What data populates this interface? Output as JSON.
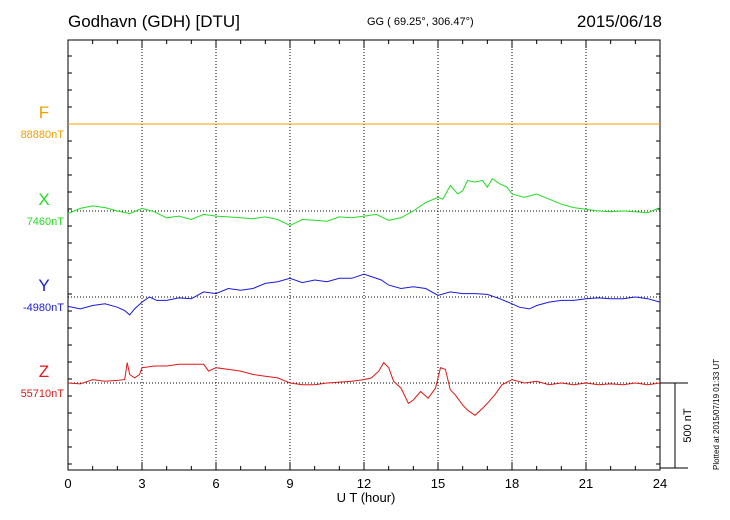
{
  "header": {
    "station": "Godhavn (GDH)  [DTU]",
    "coords": "GG ( 69.25°, 306.47°)",
    "date": "2015/06/18"
  },
  "footer": {
    "plotted": "Plotted at 2015/07/19 01:33 UT"
  },
  "colors": {
    "F": "#f0a000",
    "X": "#22dd22",
    "Y": "#1a1adc",
    "Z": "#e01818"
  },
  "chart_data": {
    "type": "line",
    "title": "Godhavn (GDH)  [DTU]",
    "xlabel": "U T (hour)",
    "xlim": [
      0,
      24
    ],
    "xticks": [
      "0",
      "3",
      "6",
      "9",
      "12",
      "15",
      "18",
      "21",
      "24"
    ],
    "grid": true,
    "scale_bar": "500 nT",
    "series": [
      {
        "name": "F",
        "baseline_label": "88880nT",
        "baseline": 88880,
        "x": [
          0,
          24
        ],
        "y": [
          88880,
          88880
        ]
      },
      {
        "name": "X",
        "baseline_label": "7460nT",
        "baseline": 7460,
        "x": [
          0,
          0.5,
          1,
          1.5,
          2,
          2.5,
          3,
          3.5,
          4,
          4.5,
          5,
          5.5,
          6,
          6.5,
          7,
          7.5,
          8,
          8.5,
          9,
          9.5,
          10,
          10.5,
          11,
          11.5,
          12,
          12.5,
          13,
          13.5,
          14,
          14.5,
          15,
          15.2,
          15.5,
          15.8,
          16,
          16.2,
          16.5,
          16.8,
          17,
          17.2,
          17.5,
          17.8,
          18,
          18.5,
          19,
          19.5,
          20,
          20.5,
          21,
          21.5,
          22,
          22.5,
          23,
          23.5,
          24
        ],
        "y": [
          7445,
          7475,
          7490,
          7480,
          7460,
          7445,
          7475,
          7455,
          7420,
          7430,
          7410,
          7440,
          7430,
          7425,
          7420,
          7415,
          7425,
          7410,
          7375,
          7410,
          7405,
          7400,
          7425,
          7420,
          7430,
          7440,
          7405,
          7420,
          7460,
          7510,
          7540,
          7530,
          7610,
          7560,
          7580,
          7640,
          7630,
          7640,
          7600,
          7650,
          7620,
          7600,
          7560,
          7540,
          7560,
          7530,
          7500,
          7480,
          7470,
          7460,
          7455,
          7460,
          7455,
          7450,
          7480
        ]
      },
      {
        "name": "Y",
        "baseline_label": "-4980nT",
        "baseline": -4980,
        "x": [
          0,
          0.5,
          1,
          1.5,
          2,
          2.3,
          2.5,
          2.7,
          3,
          3.3,
          3.6,
          4,
          4.5,
          5,
          5.5,
          6,
          6.5,
          7,
          7.5,
          8,
          8.5,
          9,
          9.5,
          10,
          10.5,
          11,
          11.5,
          12,
          12.3,
          12.7,
          13,
          13.5,
          14,
          14.5,
          15,
          15.5,
          16,
          16.5,
          17,
          17.5,
          18,
          18.3,
          18.7,
          19,
          19.5,
          20,
          20.5,
          21,
          21.5,
          22,
          22.5,
          23,
          23.5,
          24
        ],
        "y": [
          -5035,
          -5050,
          -5030,
          -5020,
          -5040,
          -5060,
          -5085,
          -5050,
          -5010,
          -4980,
          -5000,
          -5000,
          -4985,
          -4990,
          -4950,
          -4960,
          -4930,
          -4940,
          -4930,
          -4900,
          -4890,
          -4870,
          -4895,
          -4880,
          -4890,
          -4870,
          -4870,
          -4845,
          -4860,
          -4880,
          -4910,
          -4930,
          -4920,
          -4930,
          -4970,
          -4950,
          -4960,
          -4960,
          -4965,
          -4990,
          -5020,
          -5040,
          -5050,
          -5030,
          -5010,
          -5000,
          -5000,
          -4990,
          -4985,
          -4990,
          -4990,
          -4980,
          -4990,
          -5010
        ]
      },
      {
        "name": "Z",
        "baseline_label": "55710nT",
        "baseline": 55710,
        "x": [
          0,
          0.5,
          1,
          1.5,
          2,
          2.3,
          2.4,
          2.5,
          2.7,
          2.9,
          3,
          3.5,
          4,
          4.5,
          5,
          5.5,
          5.7,
          6,
          6.5,
          7,
          7.5,
          8,
          8.5,
          9,
          9.5,
          10,
          10.5,
          11,
          11.5,
          12,
          12.3,
          12.6,
          12.8,
          13,
          13.2,
          13.5,
          13.8,
          14,
          14.3,
          14.6,
          14.9,
          15.1,
          15.3,
          15.5,
          15.7,
          16,
          16.2,
          16.5,
          16.8,
          17,
          17.3,
          17.6,
          18,
          18.5,
          19,
          19.5,
          20,
          20.5,
          21,
          21.5,
          22,
          22.5,
          23,
          23.5,
          24
        ],
        "y": [
          55710,
          55705,
          55730,
          55720,
          55725,
          55730,
          55830,
          55760,
          55740,
          55760,
          55800,
          55810,
          55810,
          55820,
          55820,
          55820,
          55780,
          55800,
          55790,
          55780,
          55760,
          55750,
          55740,
          55710,
          55700,
          55700,
          55710,
          55715,
          55720,
          55730,
          55740,
          55780,
          55830,
          55800,
          55720,
          55680,
          55590,
          55610,
          55660,
          55620,
          55680,
          55800,
          55790,
          55670,
          55640,
          55580,
          55550,
          55520,
          55560,
          55590,
          55640,
          55700,
          55730,
          55710,
          55720,
          55700,
          55710,
          55700,
          55710,
          55700,
          55705,
          55700,
          55710,
          55700,
          55710
        ]
      }
    ]
  }
}
